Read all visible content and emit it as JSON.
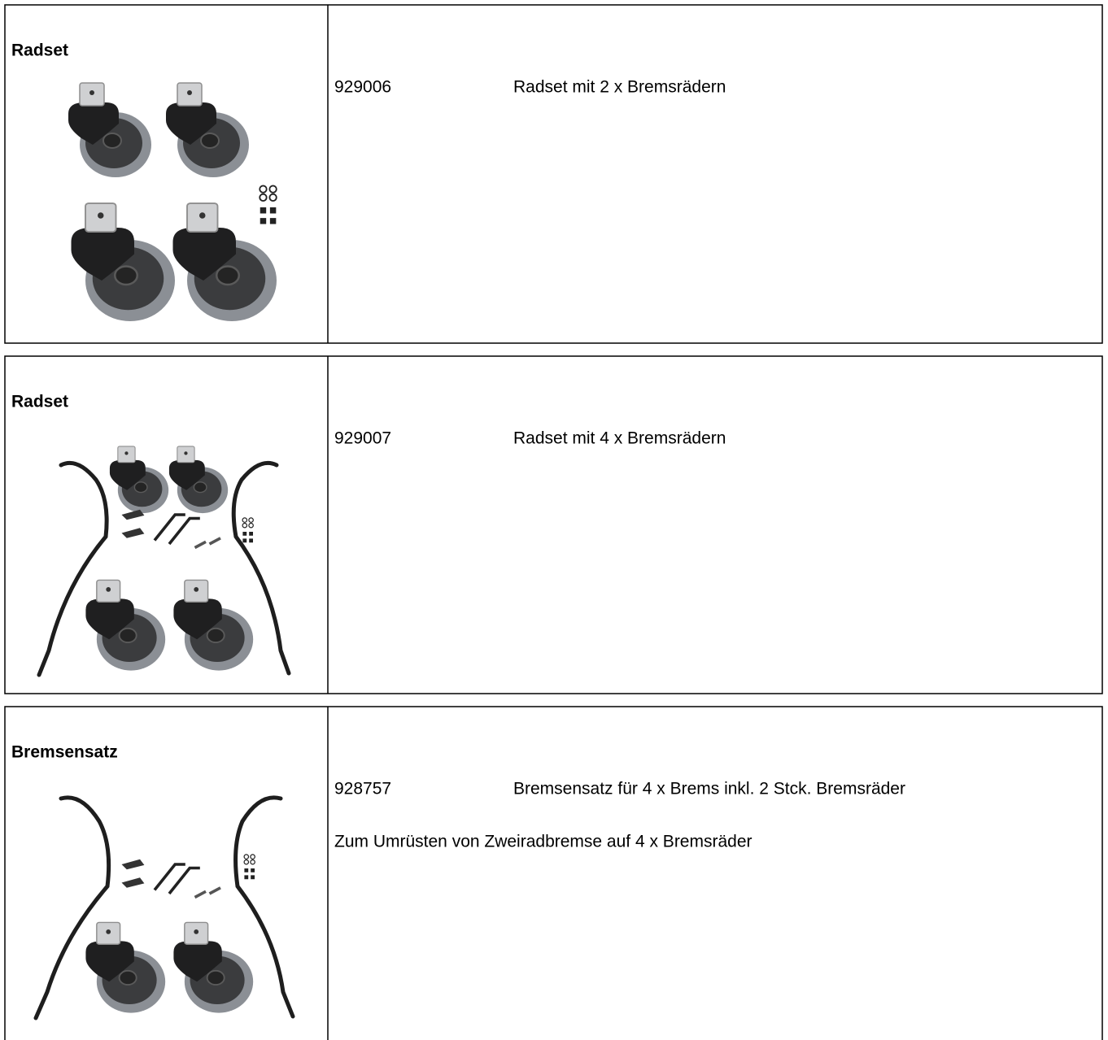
{
  "items": [
    {
      "title": "Radset",
      "number": "929006",
      "description": "Radset mit 2 x Bremsrädern"
    },
    {
      "title": "Radset",
      "number": "929007",
      "description": "Radset mit 4 x Bremsrädern"
    },
    {
      "title": "Bremsensatz",
      "number": "928757",
      "description": "Bremsensatz für 4 x Brems inkl. 2 Stck. Bremsräder",
      "note": "Zum Umrüsten von Zweiradbremse auf 4 x Bremsräder"
    }
  ]
}
